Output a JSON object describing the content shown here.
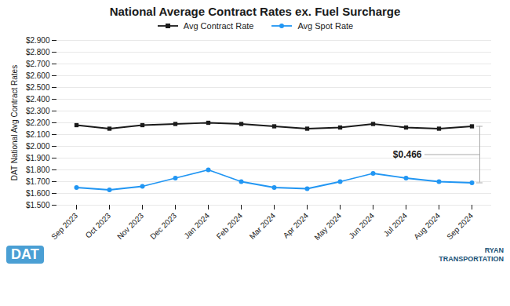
{
  "chart_data": {
    "type": "line",
    "title": "National Average Contract Rates ex. Fuel Surcharge",
    "ylabel": "DAT National Avg Contract Rates",
    "categories": [
      "Sep 2023",
      "Oct 2023",
      "Nov 2023",
      "Dec 2023",
      "Jan 2024",
      "Feb 2024",
      "Mar 2024",
      "Apr 2024",
      "May 2024",
      "Jun 2024",
      "Jul 2024",
      "Aug 2024",
      "Sep 2024"
    ],
    "series": [
      {
        "name": "Avg Contract Rate",
        "color": "#1a1a1a",
        "marker": "square",
        "values": [
          2.18,
          2.15,
          2.18,
          2.19,
          2.2,
          2.19,
          2.17,
          2.15,
          2.16,
          2.19,
          2.16,
          2.15,
          2.17
        ]
      },
      {
        "name": "Avg Spot Rate",
        "color": "#2196F3",
        "marker": "circle",
        "values": [
          1.65,
          1.63,
          1.66,
          1.73,
          1.8,
          1.7,
          1.65,
          1.64,
          1.7,
          1.77,
          1.73,
          1.7,
          1.69
        ]
      }
    ],
    "ylim": [
      1.5,
      2.9
    ],
    "yticks": [
      {
        "value": 1.5,
        "label": "$1.500"
      },
      {
        "value": 1.6,
        "label": "$1.600"
      },
      {
        "value": 1.7,
        "label": "$1.700"
      },
      {
        "value": 1.8,
        "label": "$1.800"
      },
      {
        "value": 1.9,
        "label": "$1.900"
      },
      {
        "value": 2.0,
        "label": "$2.000"
      },
      {
        "value": 2.1,
        "label": "$2.100"
      },
      {
        "value": 2.2,
        "label": "$2.200"
      },
      {
        "value": 2.3,
        "label": "$2.300"
      },
      {
        "value": 2.4,
        "label": "$2.400"
      },
      {
        "value": 2.5,
        "label": "$2.500"
      },
      {
        "value": 2.6,
        "label": "$2.600"
      },
      {
        "value": 2.7,
        "label": "$2.700"
      },
      {
        "value": 2.8,
        "label": "$2.800"
      },
      {
        "value": 2.9,
        "label": "$2.900"
      }
    ],
    "grid": true,
    "legend": "top",
    "annotation": "$0.466",
    "footer_left": "DAT",
    "footer_right": "RYAN\nTRANSPORTATION"
  }
}
